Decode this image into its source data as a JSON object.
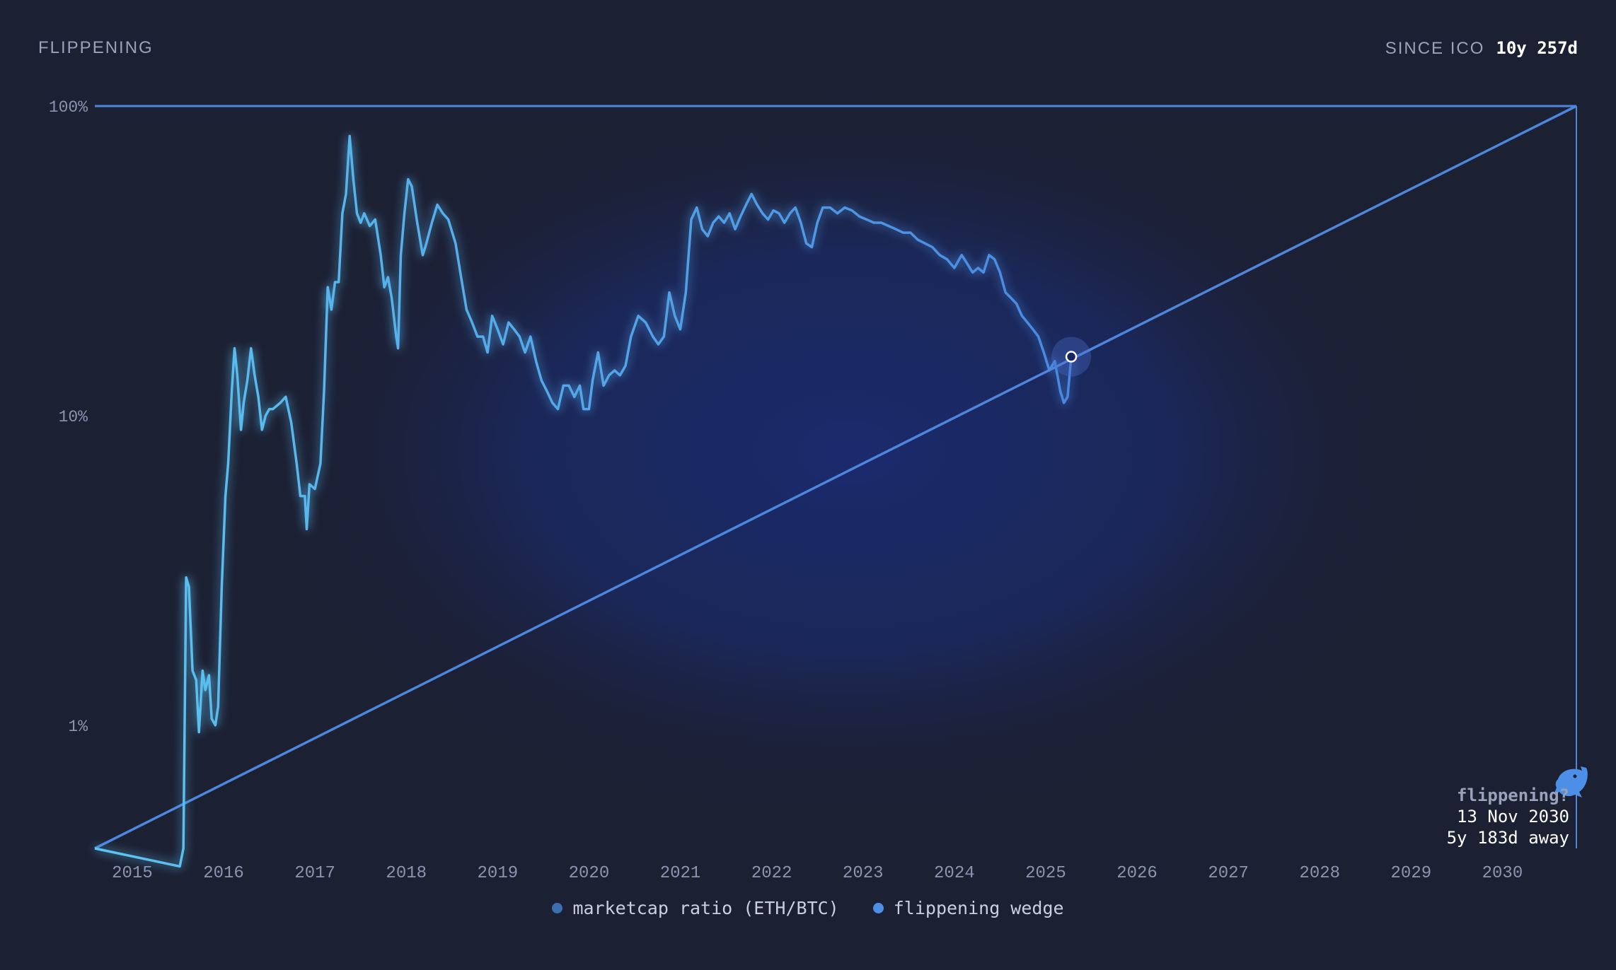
{
  "header": {
    "title": "FLIPPENING",
    "since_label": "SINCE ICO",
    "since_value": "10y 257d"
  },
  "annotation": {
    "icon": "dolphin-icon",
    "question": "flippening?",
    "date": "13 Nov 2030",
    "away": "5y 183d away"
  },
  "legend": [
    {
      "label": "marketcap ratio (ETH/BTC)",
      "color": "#3b6fb0"
    },
    {
      "label": "flippening wedge",
      "color": "#4d8fe6"
    }
  ],
  "colors": {
    "background": "#1c2033",
    "ratio_line_start": "#5cc4f0",
    "ratio_line_end": "#4a88e0",
    "wedge": "#4e86dc",
    "glow": "#1a2b70"
  },
  "chart_data": {
    "type": "line",
    "yscale": "log",
    "ylim": [
      0.4,
      100
    ],
    "yticks": [
      {
        "value": 100,
        "label": "100%"
      },
      {
        "value": 10,
        "label": "10%"
      },
      {
        "value": 1,
        "label": "1%"
      }
    ],
    "xlim": [
      2014.65,
      2030.87
    ],
    "xticks": [
      "2015",
      "2016",
      "2017",
      "2018",
      "2019",
      "2020",
      "2021",
      "2022",
      "2023",
      "2024",
      "2025",
      "2026",
      "2027",
      "2028",
      "2029",
      "2030"
    ],
    "series": [
      {
        "name": "marketcap ratio (ETH/BTC)",
        "points": [
          [
            2014.65,
            0.4
          ],
          [
            2015.58,
            0.35
          ],
          [
            2015.62,
            0.4
          ],
          [
            2015.65,
            3.0
          ],
          [
            2015.68,
            2.8
          ],
          [
            2015.72,
            1.5
          ],
          [
            2015.76,
            1.4
          ],
          [
            2015.79,
            0.95
          ],
          [
            2015.83,
            1.5
          ],
          [
            2015.86,
            1.3
          ],
          [
            2015.9,
            1.45
          ],
          [
            2015.93,
            1.05
          ],
          [
            2015.97,
            1.0
          ],
          [
            2016.0,
            1.15
          ],
          [
            2016.04,
            2.8
          ],
          [
            2016.08,
            5.5
          ],
          [
            2016.11,
            7.0
          ],
          [
            2016.15,
            12.0
          ],
          [
            2016.18,
            16.5
          ],
          [
            2016.21,
            13.5
          ],
          [
            2016.25,
            9.0
          ],
          [
            2016.28,
            11.0
          ],
          [
            2016.32,
            13.0
          ],
          [
            2016.36,
            16.5
          ],
          [
            2016.4,
            13.5
          ],
          [
            2016.44,
            11.5
          ],
          [
            2016.48,
            9.0
          ],
          [
            2016.52,
            10.0
          ],
          [
            2016.56,
            10.5
          ],
          [
            2016.6,
            10.5
          ],
          [
            2016.68,
            11.0
          ],
          [
            2016.74,
            11.5
          ],
          [
            2016.8,
            9.5
          ],
          [
            2016.86,
            7.0
          ],
          [
            2016.9,
            5.5
          ],
          [
            2016.95,
            5.5
          ],
          [
            2016.97,
            4.3
          ],
          [
            2017.0,
            6.0
          ],
          [
            2017.06,
            5.8
          ],
          [
            2017.12,
            7.0
          ],
          [
            2017.16,
            12.0
          ],
          [
            2017.2,
            26.0
          ],
          [
            2017.24,
            22.0
          ],
          [
            2017.28,
            27.0
          ],
          [
            2017.32,
            27.0
          ],
          [
            2017.36,
            45.0
          ],
          [
            2017.4,
            52.0
          ],
          [
            2017.44,
            80.0
          ],
          [
            2017.48,
            58.0
          ],
          [
            2017.52,
            45.0
          ],
          [
            2017.56,
            42.0
          ],
          [
            2017.6,
            45.0
          ],
          [
            2017.66,
            41.0
          ],
          [
            2017.72,
            43.0
          ],
          [
            2017.78,
            33.0
          ],
          [
            2017.82,
            26.0
          ],
          [
            2017.86,
            28.0
          ],
          [
            2017.9,
            24.0
          ],
          [
            2017.95,
            18.0
          ],
          [
            2017.97,
            16.5
          ],
          [
            2018.0,
            33.0
          ],
          [
            2018.04,
            45.0
          ],
          [
            2018.08,
            58.0
          ],
          [
            2018.12,
            55.0
          ],
          [
            2018.18,
            42.0
          ],
          [
            2018.24,
            33.0
          ],
          [
            2018.28,
            36.0
          ],
          [
            2018.34,
            42.0
          ],
          [
            2018.4,
            48.0
          ],
          [
            2018.46,
            45.0
          ],
          [
            2018.52,
            43.0
          ],
          [
            2018.6,
            36.0
          ],
          [
            2018.66,
            28.0
          ],
          [
            2018.72,
            22.0
          ],
          [
            2018.78,
            20.0
          ],
          [
            2018.84,
            18.0
          ],
          [
            2018.9,
            18.0
          ],
          [
            2018.95,
            16.0
          ],
          [
            2019.0,
            21.0
          ],
          [
            2019.06,
            19.0
          ],
          [
            2019.12,
            17.0
          ],
          [
            2019.18,
            20.0
          ],
          [
            2019.24,
            19.0
          ],
          [
            2019.3,
            18.0
          ],
          [
            2019.36,
            16.0
          ],
          [
            2019.42,
            18.0
          ],
          [
            2019.48,
            15.0
          ],
          [
            2019.54,
            13.0
          ],
          [
            2019.6,
            12.0
          ],
          [
            2019.66,
            11.0
          ],
          [
            2019.72,
            10.5
          ],
          [
            2019.78,
            12.5
          ],
          [
            2019.84,
            12.5
          ],
          [
            2019.9,
            11.5
          ],
          [
            2019.96,
            12.5
          ],
          [
            2020.0,
            10.5
          ],
          [
            2020.06,
            10.5
          ],
          [
            2020.1,
            13.0
          ],
          [
            2020.16,
            16.0
          ],
          [
            2020.22,
            12.5
          ],
          [
            2020.28,
            13.5
          ],
          [
            2020.34,
            14.0
          ],
          [
            2020.4,
            13.5
          ],
          [
            2020.46,
            14.5
          ],
          [
            2020.52,
            18.0
          ],
          [
            2020.6,
            21.0
          ],
          [
            2020.68,
            20.0
          ],
          [
            2020.76,
            18.0
          ],
          [
            2020.82,
            17.0
          ],
          [
            2020.88,
            18.0
          ],
          [
            2020.94,
            25.0
          ],
          [
            2021.0,
            21.0
          ],
          [
            2021.06,
            19.0
          ],
          [
            2021.12,
            25.0
          ],
          [
            2021.18,
            43.0
          ],
          [
            2021.24,
            47.0
          ],
          [
            2021.3,
            40.0
          ],
          [
            2021.36,
            38.0
          ],
          [
            2021.42,
            42.0
          ],
          [
            2021.48,
            44.0
          ],
          [
            2021.54,
            42.0
          ],
          [
            2021.6,
            45.0
          ],
          [
            2021.66,
            40.0
          ],
          [
            2021.72,
            44.0
          ],
          [
            2021.78,
            48.0
          ],
          [
            2021.84,
            52.0
          ],
          [
            2021.9,
            48.0
          ],
          [
            2021.96,
            45.0
          ],
          [
            2022.02,
            43.0
          ],
          [
            2022.08,
            46.0
          ],
          [
            2022.14,
            45.0
          ],
          [
            2022.2,
            42.0
          ],
          [
            2022.26,
            45.0
          ],
          [
            2022.32,
            47.0
          ],
          [
            2022.38,
            42.0
          ],
          [
            2022.44,
            36.0
          ],
          [
            2022.5,
            35.0
          ],
          [
            2022.56,
            42.0
          ],
          [
            2022.62,
            47.0
          ],
          [
            2022.7,
            47.0
          ],
          [
            2022.78,
            45.0
          ],
          [
            2022.86,
            47.0
          ],
          [
            2022.94,
            46.0
          ],
          [
            2023.02,
            44.0
          ],
          [
            2023.1,
            43.0
          ],
          [
            2023.18,
            42.0
          ],
          [
            2023.26,
            42.0
          ],
          [
            2023.34,
            41.0
          ],
          [
            2023.42,
            40.0
          ],
          [
            2023.5,
            39.0
          ],
          [
            2023.58,
            39.0
          ],
          [
            2023.66,
            37.0
          ],
          [
            2023.74,
            36.0
          ],
          [
            2023.82,
            35.0
          ],
          [
            2023.9,
            33.0
          ],
          [
            2023.98,
            32.0
          ],
          [
            2024.06,
            30.0
          ],
          [
            2024.14,
            33.0
          ],
          [
            2024.2,
            31.0
          ],
          [
            2024.26,
            29.0
          ],
          [
            2024.32,
            30.0
          ],
          [
            2024.38,
            29.0
          ],
          [
            2024.44,
            33.0
          ],
          [
            2024.5,
            32.0
          ],
          [
            2024.56,
            29.0
          ],
          [
            2024.62,
            25.0
          ],
          [
            2024.68,
            24.0
          ],
          [
            2024.74,
            23.0
          ],
          [
            2024.8,
            21.0
          ],
          [
            2024.86,
            20.0
          ],
          [
            2024.92,
            19.0
          ],
          [
            2024.98,
            18.0
          ],
          [
            2025.04,
            16.0
          ],
          [
            2025.1,
            14.0
          ],
          [
            2025.16,
            15.0
          ],
          [
            2025.22,
            12.0
          ],
          [
            2025.26,
            11.0
          ],
          [
            2025.3,
            11.5
          ],
          [
            2025.34,
            15.5
          ]
        ]
      },
      {
        "name": "flippening wedge",
        "points": [
          [
            2014.65,
            0.4
          ],
          [
            2030.87,
            100
          ]
        ]
      }
    ]
  }
}
